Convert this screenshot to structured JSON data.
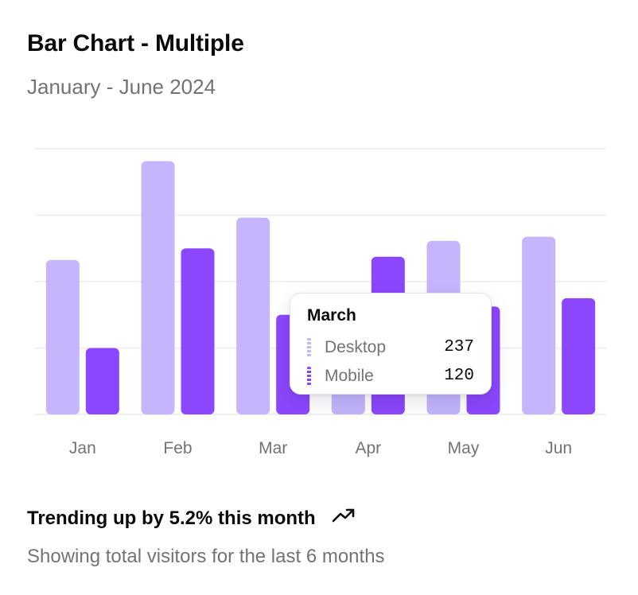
{
  "card": {
    "title": "Bar Chart - Multiple",
    "subtitle": "January - June 2024"
  },
  "chart_data": {
    "type": "bar",
    "title": "Bar Chart - Multiple",
    "subtitle": "January - June 2024",
    "categories": [
      "Jan",
      "Feb",
      "Mar",
      "Apr",
      "May",
      "Jun"
    ],
    "series": [
      {
        "name": "Desktop",
        "color": "#c4b5fd",
        "values": [
          186,
          305,
          237,
          73,
          209,
          214
        ]
      },
      {
        "name": "Mobile",
        "color": "#8b47fd",
        "values": [
          80,
          200,
          120,
          190,
          130,
          140
        ]
      }
    ],
    "ylim": [
      0,
      320
    ],
    "grid": true,
    "active_category": "Mar"
  },
  "tooltip": {
    "title": "March",
    "rows": [
      {
        "label": "Desktop",
        "value": "237",
        "color": "#c4b5fd"
      },
      {
        "label": "Mobile",
        "value": "120",
        "color": "#8b47fd"
      }
    ]
  },
  "footer": {
    "trend_text": "Trending up by 5.2% this month",
    "trend_icon": "trending-up-icon",
    "note": "Showing total visitors for the last 6 months"
  }
}
